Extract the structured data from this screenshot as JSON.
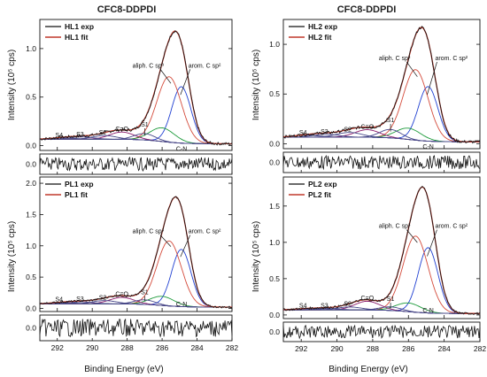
{
  "figure": {
    "titles": [
      "CFC8-DDPDI",
      "CFC8-DDPDI"
    ],
    "ylabel": "Intensity (10⁵ cps)",
    "xlabel": "Binding Energy (eV)"
  },
  "colors": {
    "exp": "#111111",
    "fit": "#c0392b",
    "aliph": "#d44a3a",
    "arom": "#1f3fd1",
    "cn": "#1c9a3a",
    "co": "#8a1a6a",
    "sat": "#4a4a8a",
    "background": "#555555"
  },
  "chart_data": [
    {
      "type": "line",
      "legend": [
        "HL1 exp",
        "HL1 fit"
      ],
      "xlim": [
        293,
        282
      ],
      "xticks": [
        "292",
        "290",
        "288",
        "286",
        "284",
        "282"
      ],
      "ylim": [
        -0.05,
        1.3
      ],
      "yticks": [
        "0.0",
        "0.5",
        "1.0"
      ],
      "residual_yticks": [
        "0.0"
      ],
      "annotations": [
        "aliph. C sp³",
        "arom. C sp²",
        "C-N",
        "C=O",
        "S1",
        "S2",
        "S3",
        "S4"
      ],
      "peaks": {
        "aliph": 0.72,
        "arom": 0.62,
        "cn": 0.15,
        "co": 0.08,
        "s1": 0.07,
        "s2": 0.04,
        "s3": 0.025,
        "s4": 0.015
      },
      "series": [
        {
          "name": "HL1 exp",
          "peak_max": 1.18
        },
        {
          "name": "HL1 fit",
          "peak_max": 1.18
        }
      ]
    },
    {
      "type": "line",
      "legend": [
        "HL2 exp",
        "HL2 fit"
      ],
      "xlim": [
        293,
        282
      ],
      "xticks": [
        "292",
        "290",
        "288",
        "286",
        "284",
        "282"
      ],
      "ylim": [
        -0.05,
        1.25
      ],
      "yticks": [
        "0.0",
        "0.5",
        "1.0"
      ],
      "residual_yticks": [
        "0.0"
      ],
      "annotations": [
        "aliph. C sp³",
        "arom. C sp²",
        "C-N",
        "C=O",
        "S1",
        "S2",
        "S3",
        "S4"
      ],
      "peaks": {
        "aliph": 0.75,
        "arom": 0.58,
        "cn": 0.12,
        "co": 0.08,
        "s1": 0.09,
        "s2": 0.05,
        "s3": 0.03,
        "s4": 0.02
      },
      "series": [
        {
          "name": "HL2 exp",
          "peak_max": 1.17
        },
        {
          "name": "HL2 fit",
          "peak_max": 1.17
        }
      ]
    },
    {
      "type": "line",
      "legend": [
        "PL1 exp",
        "PL1 fit"
      ],
      "xlim": [
        293,
        282
      ],
      "xticks": [
        "292",
        "290",
        "288",
        "286",
        "284",
        "282"
      ],
      "ylim": [
        -0.05,
        2.1
      ],
      "yticks": [
        "0.0",
        "0.5",
        "1.0",
        "1.5",
        "2.0"
      ],
      "residual_yticks": [
        "0.0"
      ],
      "annotations": [
        "aliph. C sp³",
        "arom. C sp²",
        "C-N",
        "C=O",
        "S1",
        "S2",
        "S3",
        "S4"
      ],
      "peaks": {
        "aliph": 1.0,
        "arom": 0.88,
        "cn": 0.14,
        "co": 0.1,
        "s1": 0.07,
        "s2": 0.05,
        "s3": 0.03,
        "s4": 0.02
      },
      "series": [
        {
          "name": "PL1 exp",
          "peak_max": 1.78
        },
        {
          "name": "PL1 fit",
          "peak_max": 1.78
        }
      ]
    },
    {
      "type": "line",
      "legend": [
        "PL2 exp",
        "PL2 fit"
      ],
      "xlim": [
        293,
        282
      ],
      "xticks": [
        "292",
        "290",
        "288",
        "286",
        "284",
        "282"
      ],
      "ylim": [
        -0.05,
        1.9
      ],
      "yticks": [
        "0.0",
        "0.5",
        "1.0",
        "1.5"
      ],
      "residual_yticks": [
        "0.0"
      ],
      "annotations": [
        "aliph. C sp³",
        "arom. C sp²",
        "C-N",
        "C=O",
        "S1",
        "S2",
        "S3",
        "S4"
      ],
      "peaks": {
        "aliph": 1.05,
        "arom": 0.9,
        "cn": 0.12,
        "co": 0.12,
        "s1": 0.05,
        "s2": 0.04,
        "s3": 0.02,
        "s4": 0.015
      },
      "series": [
        {
          "name": "PL2 exp",
          "peak_max": 1.76
        },
        {
          "name": "PL2 fit",
          "peak_max": 1.76
        }
      ]
    }
  ]
}
